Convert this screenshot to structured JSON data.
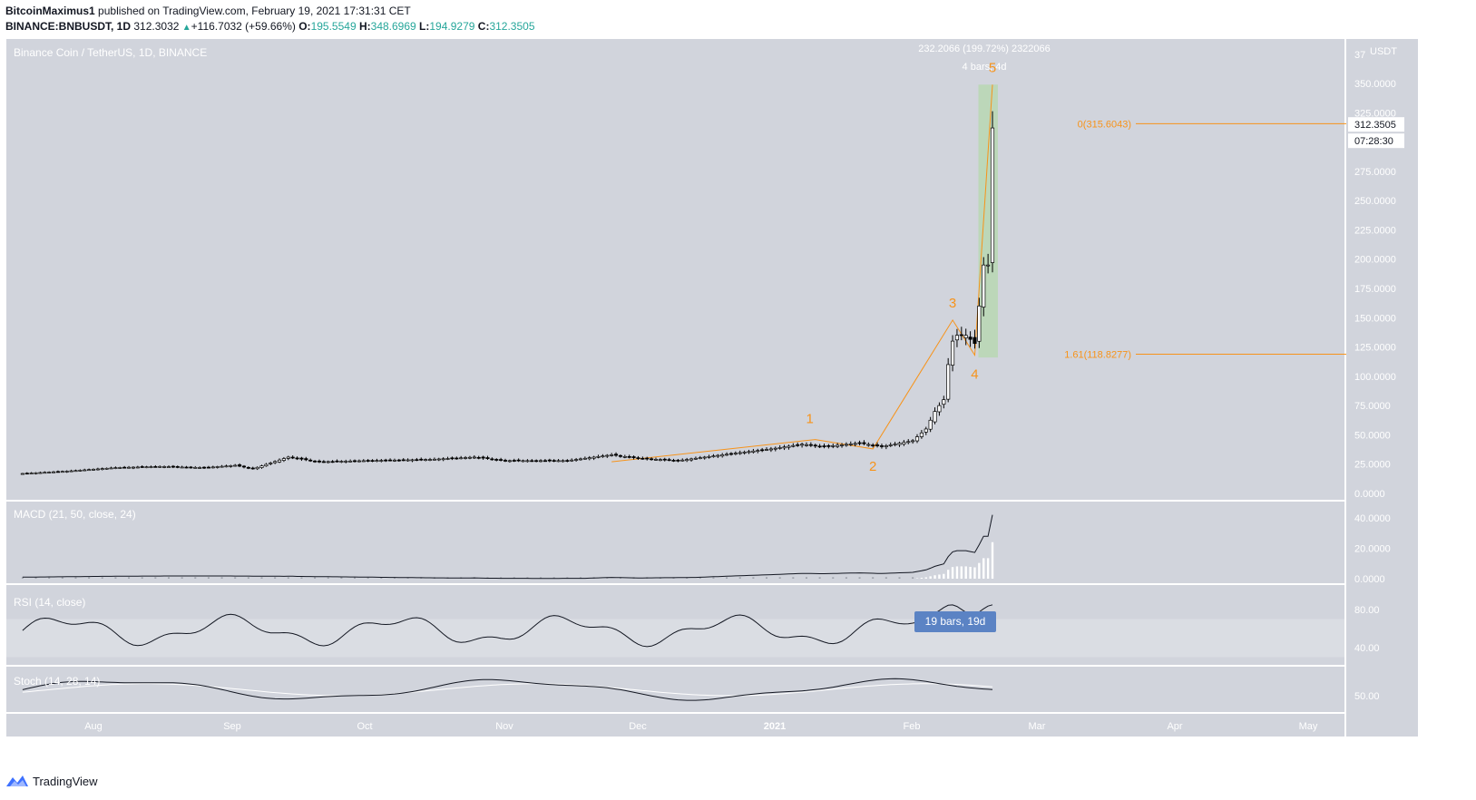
{
  "header": {
    "author": "BitcoinMaximus1",
    "published": "published on TradingView.com, February 19, 2021 17:31:31 CET",
    "symbol": "BINANCE:BNBUSDT, 1D",
    "last": "312.3032",
    "arrow": "▲",
    "change": "+116.7032 (+59.66%)",
    "o_label": "O:",
    "o_value": "195.5549",
    "h_label": "H:",
    "h_value": "348.6969",
    "l_label": "L:",
    "l_value": "194.9279",
    "c_label": "C:",
    "c_value": "312.3505"
  },
  "footer": {
    "brand": "TradingView",
    "logo_icon": "tradingview-logo-icon"
  },
  "colors": {
    "panel_bg": "#d1d4dc",
    "orange": "#f7931a",
    "measure_green": "#b7d7b0",
    "rsi_band": "#dadde3",
    "badge_blue": "#5b83c4",
    "black_line": "#131722",
    "white_line": "#ffffff"
  },
  "chart_data": {
    "type": "candlestick",
    "title": "Binance Coin / TetherUS, 1D, BINANCE",
    "unit": "USDT",
    "price_axis": {
      "ticks": [
        "350.0000",
        "325.0000",
        "300.0000",
        "275.0000",
        "250.0000",
        "225.0000",
        "200.0000",
        "175.0000",
        "150.0000",
        "125.0000",
        "100.0000",
        "75.0000",
        "50.0000",
        "25.0000",
        "0.0000"
      ],
      "top_partial": "37",
      "ylim": [
        0,
        375
      ]
    },
    "time_axis": {
      "labels": [
        "Aug",
        "Sep",
        "Oct",
        "Nov",
        "Dec",
        "2021",
        "Feb",
        "Mar",
        "Apr",
        "May"
      ]
    },
    "last_price_label": "312.3505",
    "countdown_label": "07:28:30",
    "close_series": [
      {
        "date": "2020-07-15",
        "close": 17
      },
      {
        "date": "2020-07-25",
        "close": 19
      },
      {
        "date": "2020-08-05",
        "close": 22
      },
      {
        "date": "2020-08-15",
        "close": 23
      },
      {
        "date": "2020-08-25",
        "close": 22
      },
      {
        "date": "2020-09-01",
        "close": 24
      },
      {
        "date": "2020-09-05",
        "close": 21
      },
      {
        "date": "2020-09-13",
        "close": 31
      },
      {
        "date": "2020-09-20",
        "close": 27
      },
      {
        "date": "2020-10-01",
        "close": 28
      },
      {
        "date": "2020-10-15",
        "close": 29
      },
      {
        "date": "2020-10-25",
        "close": 31
      },
      {
        "date": "2020-11-01",
        "close": 28
      },
      {
        "date": "2020-11-15",
        "close": 28
      },
      {
        "date": "2020-11-25",
        "close": 33
      },
      {
        "date": "2020-12-01",
        "close": 30
      },
      {
        "date": "2020-12-10",
        "close": 28
      },
      {
        "date": "2020-12-20",
        "close": 33
      },
      {
        "date": "2020-12-31",
        "close": 38
      },
      {
        "date": "2021-01-07",
        "close": 42
      },
      {
        "date": "2021-01-12",
        "close": 40
      },
      {
        "date": "2021-01-20",
        "close": 43
      },
      {
        "date": "2021-01-25",
        "close": 40
      },
      {
        "date": "2021-02-01",
        "close": 45
      },
      {
        "date": "2021-02-04",
        "close": 55
      },
      {
        "date": "2021-02-06",
        "close": 70
      },
      {
        "date": "2021-02-08",
        "close": 80
      },
      {
        "date": "2021-02-09",
        "close": 110
      },
      {
        "date": "2021-02-10",
        "close": 130
      },
      {
        "date": "2021-02-11",
        "close": 135
      },
      {
        "date": "2021-02-13",
        "close": 135
      },
      {
        "date": "2021-02-15",
        "close": 128
      },
      {
        "date": "2021-02-16",
        "close": 160
      },
      {
        "date": "2021-02-17",
        "close": 195
      },
      {
        "date": "2021-02-18",
        "close": 195
      },
      {
        "date": "2021-02-19",
        "close": 312
      }
    ],
    "elliott_waves": [
      {
        "label": "1",
        "date": "2021-01-10",
        "price": 46
      },
      {
        "label": "2",
        "date": "2021-01-23",
        "price": 38
      },
      {
        "label": "3",
        "date": "2021-02-10",
        "price": 148
      },
      {
        "label": "4",
        "date": "2021-02-15",
        "price": 118
      },
      {
        "label": "5",
        "date": "2021-02-19",
        "price": 349
      }
    ],
    "wave_start": {
      "date": "2020-11-25",
      "price": 27
    },
    "fib_levels": [
      {
        "label": "0(315.6043)",
        "price": 315.6043
      },
      {
        "label": "1.61(118.8277)",
        "price": 118.8277
      }
    ],
    "measure": {
      "label_top": "232.2066 (199.72%) 2322066",
      "label_bottom": "4 bars, 4d",
      "from_price": 116,
      "to_price": 349,
      "from_date": "2021-02-15",
      "to_date": "2021-02-19"
    },
    "macd": {
      "label": "MACD (21, 50, close, 24)",
      "ticks": [
        "40.0000",
        "20.0000",
        "0.0000"
      ],
      "ylim": [
        0,
        48
      ],
      "last_value": 42
    },
    "rsi": {
      "label": "RSI (14, close)",
      "ticks": [
        "80.00",
        "40.00"
      ],
      "band": [
        30,
        70
      ],
      "badge": "19 bars, 19d"
    },
    "stoch": {
      "label": "Stoch (14, 28, 14)",
      "ticks": [
        "50.00"
      ]
    }
  }
}
